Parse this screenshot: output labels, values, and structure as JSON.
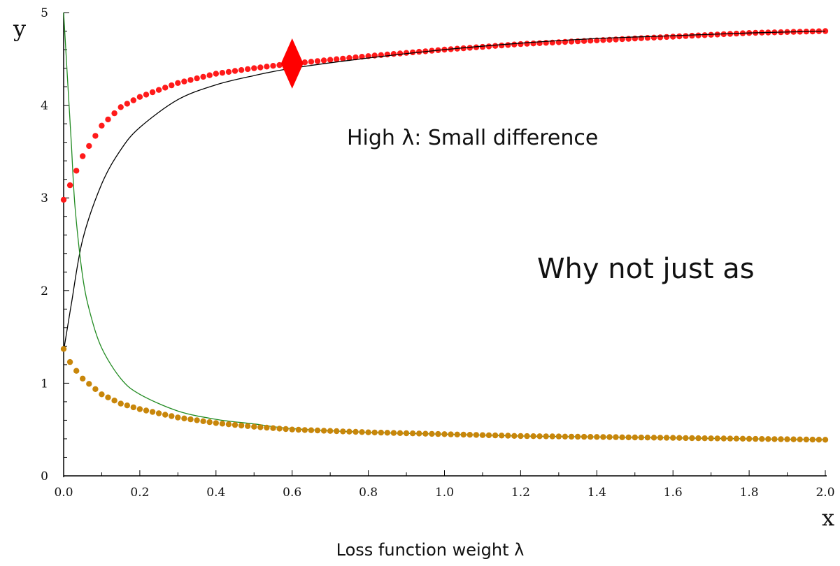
{
  "chart_data": {
    "type": "line",
    "xlabel": "x",
    "ylabel": "y",
    "x_ticks": [
      "0.0",
      "0.2",
      "0.4",
      "0.6",
      "0.8",
      "1.0",
      "1.2",
      "1.4",
      "1.6",
      "1.8",
      "2.0"
    ],
    "y_ticks": [
      "0",
      "1",
      "2",
      "3",
      "4",
      "5"
    ],
    "xlim": [
      0,
      2.0
    ],
    "ylim": [
      0,
      5
    ],
    "grid": false,
    "legend": "none",
    "caption": "Loss function weight λ",
    "annotations": [
      {
        "text": "High λ: Small difference"
      },
      {
        "text": "Why not just as"
      }
    ],
    "highlight_point": {
      "x": 0.6,
      "y": 4.45,
      "marker": "diamond",
      "color": "#ff0000"
    },
    "series": [
      {
        "style": "markers",
        "color": "#ff1a1a",
        "x": [
          0.0,
          0.05,
          0.1,
          0.15,
          0.2,
          0.3,
          0.4,
          0.5,
          0.6,
          0.8,
          1.0,
          1.2,
          1.4,
          1.6,
          1.8,
          2.0
        ],
        "y": [
          2.98,
          3.45,
          3.78,
          3.98,
          4.09,
          4.24,
          4.34,
          4.4,
          4.45,
          4.53,
          4.6,
          4.66,
          4.7,
          4.74,
          4.78,
          4.8
        ]
      },
      {
        "style": "line",
        "color": "#000000",
        "x": [
          0.0,
          0.02,
          0.05,
          0.1,
          0.15,
          0.2,
          0.3,
          0.4,
          0.5,
          0.6,
          0.8,
          1.0,
          1.2,
          1.4,
          1.6,
          1.8,
          2.0
        ],
        "y": [
          1.35,
          1.85,
          2.55,
          3.15,
          3.52,
          3.76,
          4.06,
          4.22,
          4.32,
          4.4,
          4.51,
          4.6,
          4.67,
          4.72,
          4.75,
          4.78,
          4.8
        ]
      },
      {
        "style": "line",
        "color": "#228b22",
        "x": [
          0.0,
          0.01,
          0.02,
          0.03,
          0.05,
          0.07,
          0.1,
          0.15,
          0.2,
          0.3,
          0.4,
          0.5,
          0.6,
          0.8,
          1.0,
          1.2,
          1.4,
          1.6,
          1.8,
          2.0
        ],
        "y": [
          5.0,
          4.3,
          3.6,
          2.9,
          2.15,
          1.75,
          1.38,
          1.05,
          0.88,
          0.7,
          0.61,
          0.56,
          0.51,
          0.47,
          0.45,
          0.43,
          0.42,
          0.41,
          0.4,
          0.39
        ]
      },
      {
        "style": "markers",
        "color": "#c8860a",
        "x": [
          0.0,
          0.02,
          0.05,
          0.1,
          0.15,
          0.2,
          0.3,
          0.4,
          0.5,
          0.6,
          0.8,
          1.0,
          1.2,
          1.4,
          1.6,
          1.8,
          2.0
        ],
        "y": [
          1.37,
          1.2,
          1.05,
          0.88,
          0.78,
          0.72,
          0.63,
          0.57,
          0.53,
          0.5,
          0.47,
          0.45,
          0.43,
          0.42,
          0.41,
          0.4,
          0.39
        ]
      }
    ]
  }
}
